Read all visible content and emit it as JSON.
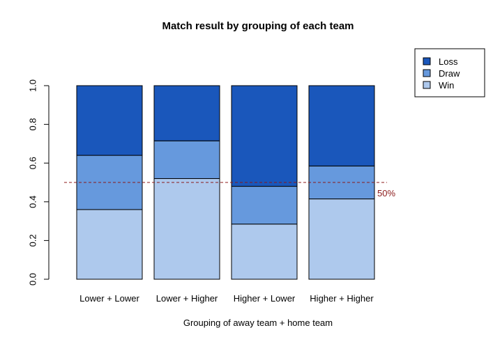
{
  "chart_data": {
    "type": "bar",
    "stacked": true,
    "title": "Match result by grouping of each team",
    "xlabel": "Grouping of away team + home team",
    "ylabel": "",
    "ylim": [
      0,
      1
    ],
    "yticks": [
      "0.0",
      "0.2",
      "0.4",
      "0.6",
      "0.8",
      "1.0"
    ],
    "categories": [
      "Lower + Lower",
      "Lower + Higher",
      "Higher + Lower",
      "Higher + Higher"
    ],
    "series": [
      {
        "name": "Win",
        "color": "#aec9ed",
        "values": [
          0.36,
          0.52,
          0.285,
          0.415
        ]
      },
      {
        "name": "Draw",
        "color": "#6699dd",
        "values": [
          0.28,
          0.195,
          0.195,
          0.17
        ]
      },
      {
        "name": "Loss",
        "color": "#1a57bb",
        "values": [
          0.36,
          0.285,
          0.52,
          0.415
        ]
      }
    ],
    "legend": {
      "position": "top-right",
      "entries": [
        "Loss",
        "Draw",
        "Win"
      ]
    },
    "reference_line": {
      "value": 0.5,
      "label": "50%",
      "color": "#8b1a1a",
      "style": "dashed"
    }
  }
}
